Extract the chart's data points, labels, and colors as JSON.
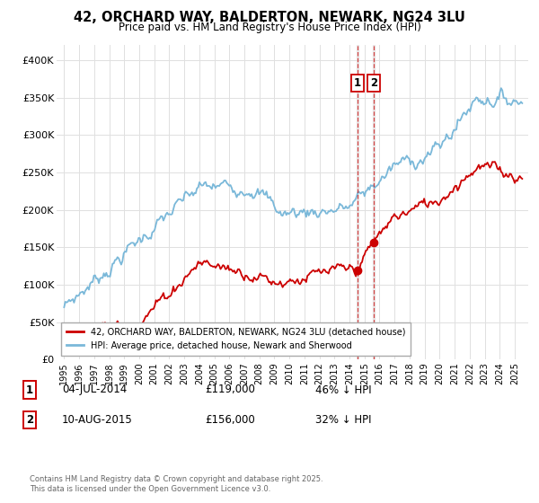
{
  "title": "42, ORCHARD WAY, BALDERTON, NEWARK, NG24 3LU",
  "subtitle": "Price paid vs. HM Land Registry's House Price Index (HPI)",
  "ylim": [
    0,
    420000
  ],
  "yticks": [
    0,
    50000,
    100000,
    150000,
    200000,
    250000,
    300000,
    350000,
    400000
  ],
  "ytick_labels": [
    "£0",
    "£50K",
    "£100K",
    "£150K",
    "£200K",
    "£250K",
    "£300K",
    "£350K",
    "£400K"
  ],
  "hpi_color": "#7ab8d9",
  "price_color": "#cc0000",
  "vline_color": "#cc0000",
  "t1_x": 2014.54,
  "t2_x": 2015.62,
  "t1_price": 119000,
  "t2_price": 156000,
  "legend_line1": "42, ORCHARD WAY, BALDERTON, NEWARK, NG24 3LU (detached house)",
  "legend_line2": "HPI: Average price, detached house, Newark and Sherwood",
  "table_rows": [
    {
      "num": "1",
      "date": "04-JUL-2014",
      "price": "£119,000",
      "pct": "46% ↓ HPI"
    },
    {
      "num": "2",
      "date": "10-AUG-2015",
      "price": "£156,000",
      "pct": "32% ↓ HPI"
    }
  ],
  "footer": "Contains HM Land Registry data © Crown copyright and database right 2025.\nThis data is licensed under the Open Government Licence v3.0.",
  "background_color": "#ffffff",
  "grid_color": "#e0e0e0",
  "xlim_left": 1994.5,
  "xlim_right": 2025.9
}
